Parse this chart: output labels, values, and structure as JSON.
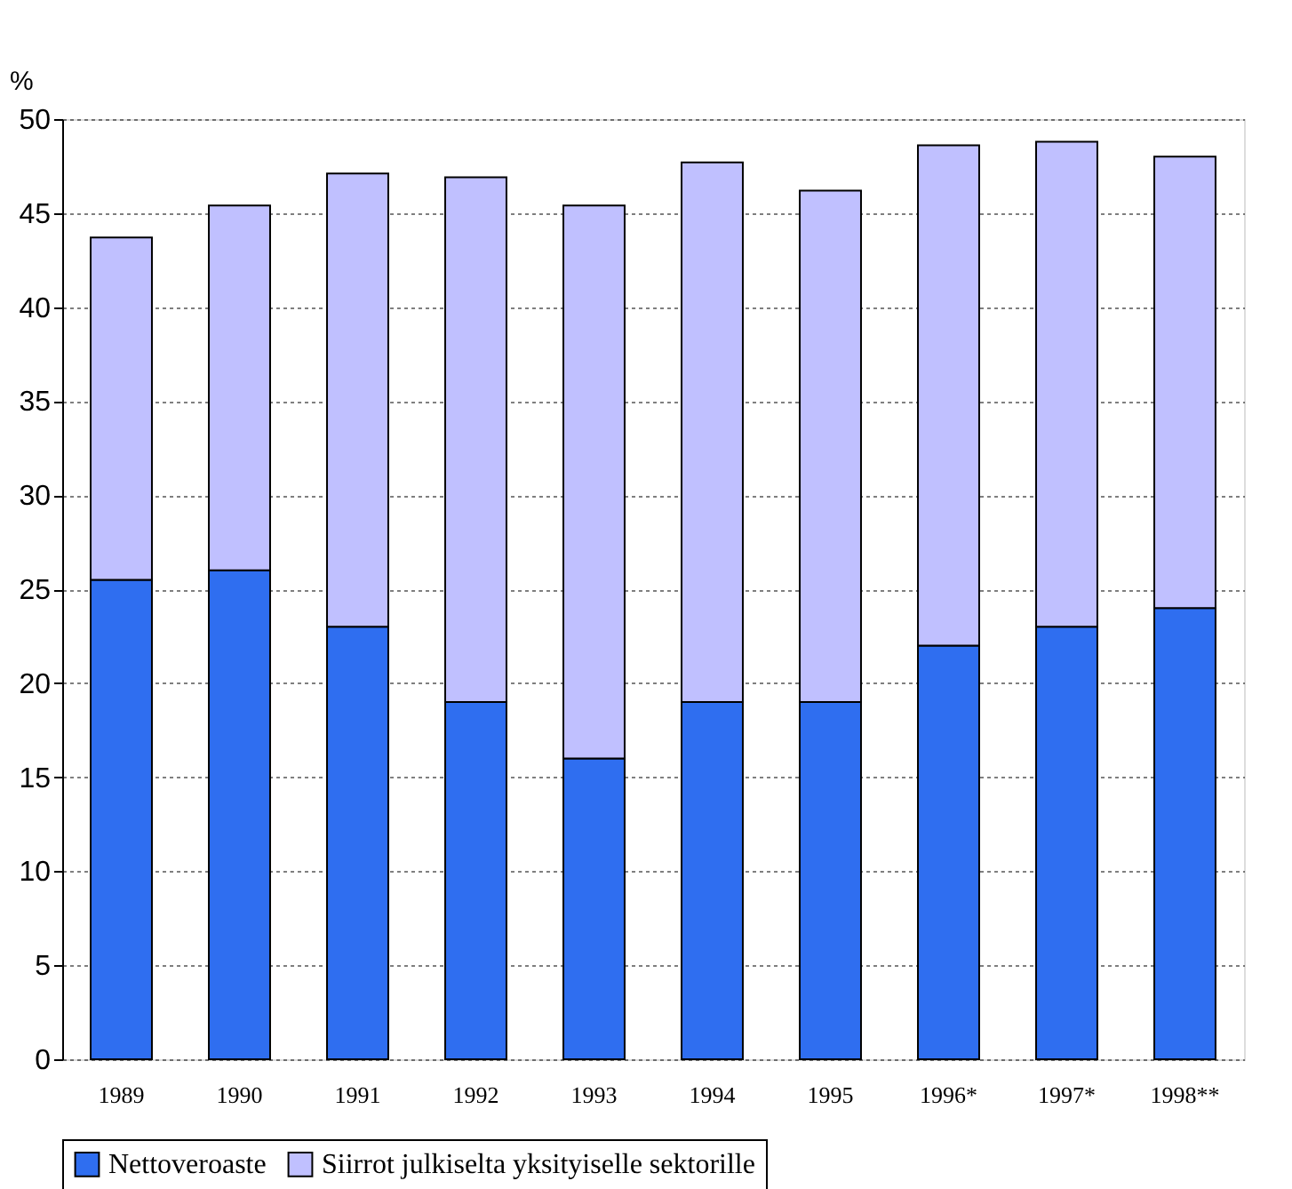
{
  "chart_data": {
    "type": "bar",
    "stacked": true,
    "ylabel": "%",
    "categories": [
      "1989",
      "1990",
      "1991",
      "1992",
      "1993",
      "1994",
      "1995",
      "1996*",
      "1997*",
      "1998**"
    ],
    "series": [
      {
        "name": "Nettoveroaste",
        "color": "#2f6ef0",
        "values": [
          25.5,
          26,
          23,
          19,
          16,
          19,
          19,
          22,
          23,
          24
        ]
      },
      {
        "name": "Siirrot julkiselta yksityiselle sektorille",
        "color": "#c0c0ff",
        "values": [
          18.2,
          19.4,
          24.1,
          27.9,
          29.4,
          28.7,
          27.2,
          26.6,
          25.8,
          24.0
        ]
      }
    ],
    "ylim": [
      0,
      50
    ],
    "yticks": [
      0,
      5,
      10,
      15,
      20,
      25,
      30,
      35,
      40,
      45,
      50
    ],
    "grid": "y",
    "legend": "bottom"
  }
}
